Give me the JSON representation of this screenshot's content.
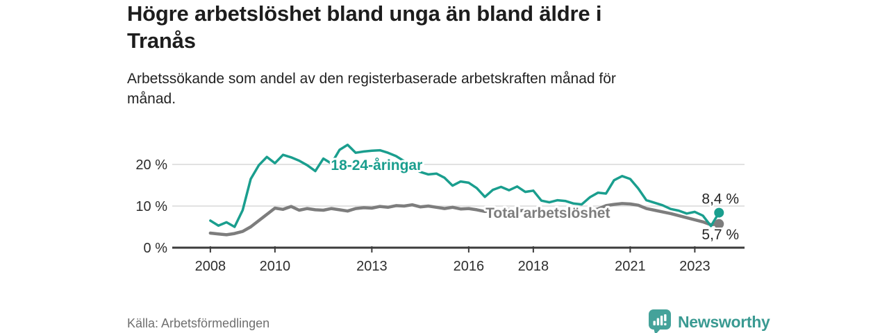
{
  "header": {
    "title_lines": [
      "Högre arbetslöshet bland unga än bland äldre i",
      "Tranås"
    ],
    "subtitle_lines": [
      "Arbetssökande som andel av den registerbaserade arbetskraften månad för",
      "månad."
    ]
  },
  "chart_data": {
    "type": "line",
    "title": "Högre arbetslöshet bland unga än bland äldre i Tranås",
    "subtitle": "Arbetssökande som andel av den registerbaserade arbetskraften månad för månad.",
    "unit": "%",
    "grid": "horizontal",
    "legend_position": "inline-labels",
    "xlim": [
      2006.82,
      2024.54
    ],
    "ylim": [
      0,
      25.5
    ],
    "grid_color": "#d8d8d8",
    "axis_color": "#3c3c3c",
    "tick_label_color": "#2d2d2d",
    "end_label_color": "#262626",
    "y_ticks": [
      {
        "value": 0,
        "label": "0 %"
      },
      {
        "value": 10,
        "label": "10 %"
      },
      {
        "value": 20,
        "label": "20 %"
      }
    ],
    "x_ticks": [
      {
        "value": 2008,
        "label": "2008"
      },
      {
        "value": 2010,
        "label": "2010"
      },
      {
        "value": 2013,
        "label": "2013"
      },
      {
        "value": 2016,
        "label": "2016"
      },
      {
        "value": 2018,
        "label": "2018"
      },
      {
        "value": 2021,
        "label": "2021"
      },
      {
        "value": 2023,
        "label": "2023"
      }
    ],
    "series": [
      {
        "name": "18-24-åringar",
        "color": "#1a9e8e",
        "stroke_width": 3.5,
        "x_start": 2008,
        "x_step": 0.25,
        "end_label": "8,4 %",
        "end_label_pos": "above",
        "values": [
          6.5,
          5.3,
          6.1,
          5.0,
          9.0,
          16.5,
          19.8,
          21.8,
          20.3,
          22.3,
          21.7,
          20.9,
          19.8,
          18.4,
          21.4,
          20.2,
          23.5,
          24.7,
          22.8,
          23.1,
          23.3,
          23.4,
          22.8,
          22.0,
          20.8,
          19.3,
          18.2,
          17.6,
          17.8,
          16.8,
          14.9,
          15.9,
          15.6,
          14.3,
          12.2,
          13.9,
          14.6,
          13.8,
          14.7,
          13.4,
          13.7,
          11.3,
          10.9,
          11.4,
          11.2,
          10.6,
          10.4,
          12.1,
          13.2,
          13.0,
          16.2,
          17.2,
          16.5,
          14.2,
          11.4,
          10.8,
          10.2,
          9.3,
          8.9,
          8.2,
          8.6,
          7.7,
          5.2,
          8.4
        ]
      },
      {
        "name": "Total arbetslöshet",
        "color": "#7d7d7d",
        "stroke_width": 4.5,
        "x_start": 2008,
        "x_step": 0.25,
        "end_label": "5,7 %",
        "end_label_pos": "below",
        "values": [
          3.5,
          3.3,
          3.1,
          3.4,
          3.9,
          5.0,
          6.5,
          8.0,
          9.5,
          9.2,
          9.9,
          9.0,
          9.4,
          9.1,
          9.0,
          9.4,
          9.1,
          8.8,
          9.4,
          9.6,
          9.5,
          9.9,
          9.7,
          10.1,
          10.0,
          10.3,
          9.8,
          10.0,
          9.7,
          9.4,
          9.7,
          9.3,
          9.4,
          9.1,
          8.7,
          9.0,
          8.9,
          9.2,
          8.8,
          9.0,
          8.9,
          8.7,
          8.5,
          8.7,
          8.6,
          8.4,
          8.5,
          8.8,
          9.3,
          10.1,
          10.4,
          10.6,
          10.5,
          10.2,
          9.4,
          9.0,
          8.6,
          8.2,
          7.7,
          7.2,
          6.7,
          6.2,
          5.5,
          5.7
        ]
      }
    ],
    "annotations": [
      {
        "text": "18-24-åringar",
        "x": 2013.15,
        "y": 19.8,
        "color": "#1a9e8e"
      },
      {
        "text": "Total arbetslöshet",
        "x": 2018.45,
        "y": 8.3,
        "color": "#7d7d7d"
      }
    ]
  },
  "footer": {
    "source": "Källa: Arbetsförmedlingen",
    "logo_text": "Newsworthy",
    "logo_color": "#3a9a92"
  }
}
